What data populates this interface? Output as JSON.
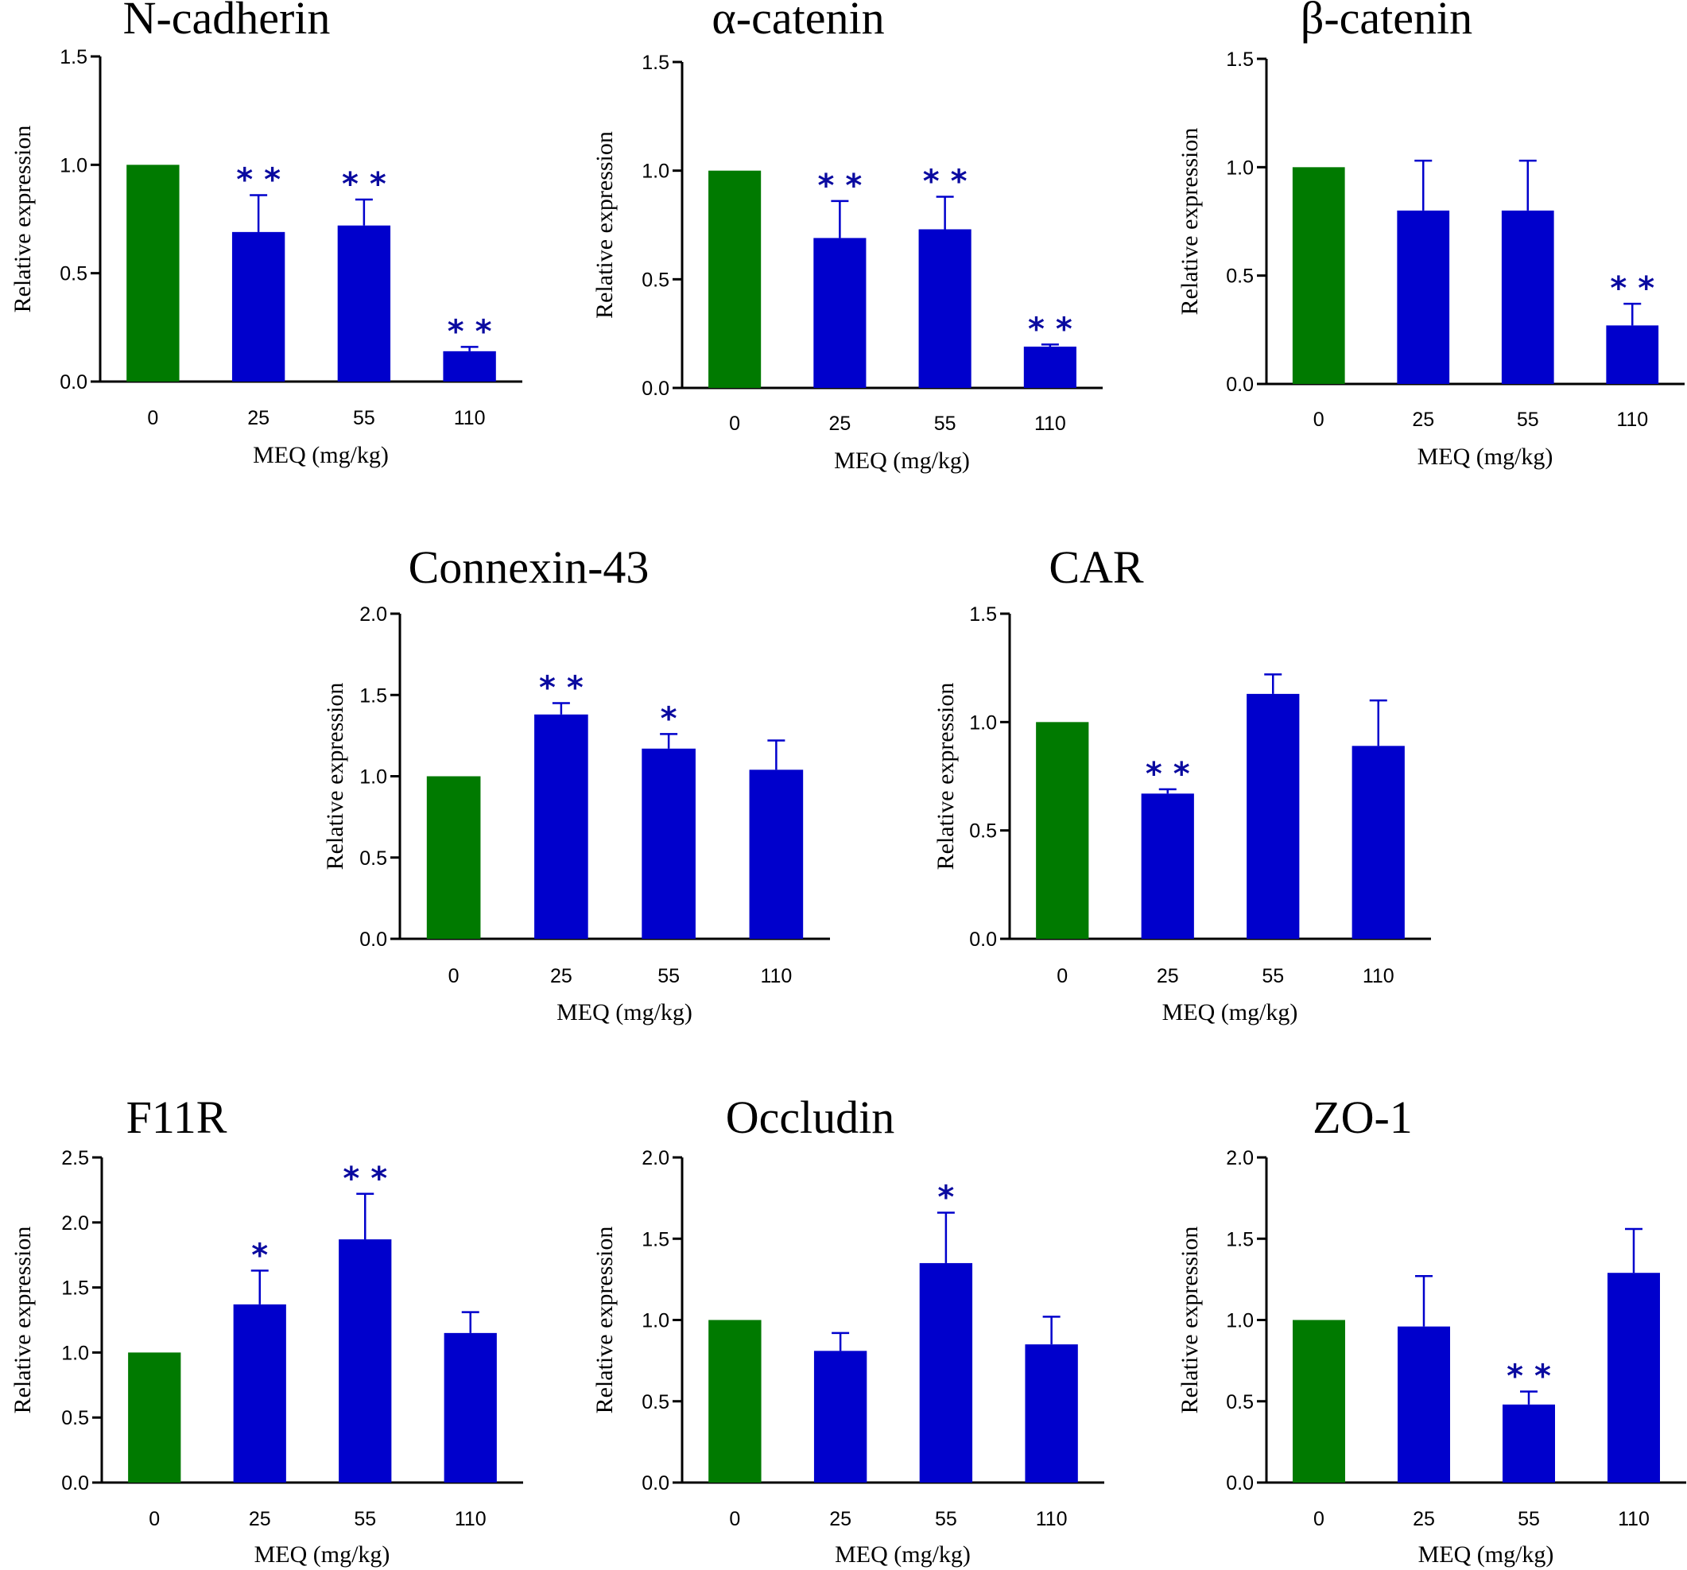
{
  "figure": {
    "x_axis_label": "MEQ  (mg/kg)",
    "y_axis_label": "Relative expression",
    "control_color": "#007a00",
    "treatment_color": "#0000cc",
    "significance_color": "#0a0aa0"
  },
  "chart_data": [
    {
      "type": "bar",
      "title": "N-cadherin",
      "categories": [
        "0",
        "25",
        "55",
        "110"
      ],
      "values": [
        1.0,
        0.69,
        0.72,
        0.14
      ],
      "errors": [
        0,
        0.17,
        0.12,
        0.02
      ],
      "significance": [
        "",
        "**",
        "**",
        "**"
      ],
      "ylim": [
        0,
        1.5
      ],
      "yticks": [
        "0.0",
        "0.5",
        "1.0",
        "1.5"
      ],
      "xlabel": "MEQ  (mg/kg)",
      "ylabel": "Relative expression"
    },
    {
      "type": "bar",
      "title": "α-catenin",
      "categories": [
        "0",
        "25",
        "55",
        "110"
      ],
      "values": [
        1.0,
        0.69,
        0.73,
        0.19
      ],
      "errors": [
        0,
        0.17,
        0.15,
        0.01
      ],
      "significance": [
        "",
        "**",
        "**",
        "**"
      ],
      "ylim": [
        0,
        1.5
      ],
      "yticks": [
        "0.0",
        "0.5",
        "1.0",
        "1.5"
      ],
      "xlabel": "MEQ  (mg/kg)",
      "ylabel": "Relative expression"
    },
    {
      "type": "bar",
      "title": "β-catenin",
      "categories": [
        "0",
        "25",
        "55",
        "110"
      ],
      "values": [
        1.0,
        0.8,
        0.8,
        0.27
      ],
      "errors": [
        0,
        0.23,
        0.23,
        0.1
      ],
      "significance": [
        "",
        "",
        "",
        "**"
      ],
      "ylim": [
        0,
        1.5
      ],
      "yticks": [
        "0.0",
        "0.5",
        "1.0",
        "1.5"
      ],
      "xlabel": "MEQ  (mg/kg)",
      "ylabel": "Relative expression"
    },
    {
      "type": "bar",
      "title": "Connexin-43",
      "categories": [
        "0",
        "25",
        "55",
        "110"
      ],
      "values": [
        1.0,
        1.38,
        1.17,
        1.04
      ],
      "errors": [
        0,
        0.07,
        0.09,
        0.18
      ],
      "significance": [
        "",
        "**",
        "*",
        ""
      ],
      "ylim": [
        0,
        2.0
      ],
      "yticks": [
        "0.0",
        "0.5",
        "1.0",
        "1.5",
        "2.0"
      ],
      "xlabel": "MEQ  (mg/kg)",
      "ylabel": "Relative expression"
    },
    {
      "type": "bar",
      "title": "CAR",
      "categories": [
        "0",
        "25",
        "55",
        "110"
      ],
      "values": [
        1.0,
        0.67,
        1.13,
        0.89
      ],
      "errors": [
        0,
        0.02,
        0.09,
        0.21
      ],
      "significance": [
        "",
        "**",
        "",
        ""
      ],
      "ylim": [
        0,
        1.5
      ],
      "yticks": [
        "0.0",
        "0.5",
        "1.0",
        "1.5"
      ],
      "xlabel": "MEQ  (mg/kg)",
      "ylabel": "Relative expression"
    },
    {
      "type": "bar",
      "title": "F11R",
      "categories": [
        "0",
        "25",
        "55",
        "110"
      ],
      "values": [
        1.0,
        1.37,
        1.87,
        1.15
      ],
      "errors": [
        0,
        0.26,
        0.35,
        0.16
      ],
      "significance": [
        "",
        "*",
        "**",
        ""
      ],
      "ylim": [
        0,
        2.5
      ],
      "yticks": [
        "0.0",
        "0.5",
        "1.0",
        "1.5",
        "2.0",
        "2.5"
      ],
      "xlabel": "MEQ  (mg/kg)",
      "ylabel": "Relative expression"
    },
    {
      "type": "bar",
      "title": "Occludin",
      "categories": [
        "0",
        "25",
        "55",
        "110"
      ],
      "values": [
        1.0,
        0.81,
        1.35,
        0.85
      ],
      "errors": [
        0,
        0.11,
        0.31,
        0.17
      ],
      "significance": [
        "",
        "",
        "*",
        ""
      ],
      "ylim": [
        0,
        2.0
      ],
      "yticks": [
        "0.0",
        "0.5",
        "1.0",
        "1.5",
        "2.0"
      ],
      "xlabel": "MEQ  (mg/kg)",
      "ylabel": "Relative expression"
    },
    {
      "type": "bar",
      "title": "ZO-1",
      "categories": [
        "0",
        "25",
        "55",
        "110"
      ],
      "values": [
        1.0,
        0.96,
        0.48,
        1.29
      ],
      "errors": [
        0,
        0.31,
        0.08,
        0.27
      ],
      "significance": [
        "",
        "",
        "**",
        ""
      ],
      "ylim": [
        0,
        2.0
      ],
      "yticks": [
        "0.0",
        "0.5",
        "1.0",
        "1.5",
        "2.0"
      ],
      "xlabel": "MEQ  (mg/kg)",
      "ylabel": "Relative expression"
    }
  ]
}
